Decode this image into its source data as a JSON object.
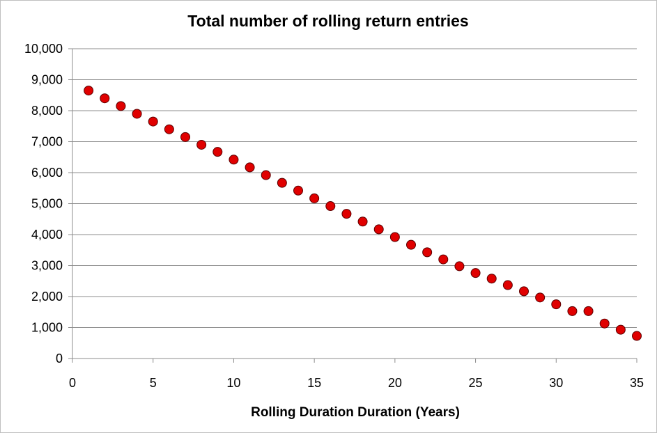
{
  "chart_data": {
    "type": "scatter",
    "title": "Total number of rolling return entries",
    "xlabel": "Rolling Duration Duration (Years)",
    "ylabel": "",
    "xlim": [
      0,
      35
    ],
    "ylim": [
      0,
      10000
    ],
    "x_ticks": [
      0,
      5,
      10,
      15,
      20,
      25,
      30,
      35
    ],
    "x_tick_labels": [
      "0",
      "5",
      "10",
      "15",
      "20",
      "25",
      "30",
      "35"
    ],
    "y_ticks": [
      0,
      1000,
      2000,
      3000,
      4000,
      5000,
      6000,
      7000,
      8000,
      9000,
      10000
    ],
    "y_tick_labels": [
      "0",
      "1,000",
      "2,000",
      "3,000",
      "4,000",
      "5,000",
      "6,000",
      "7,000",
      "8,000",
      "9,000",
      "10,000"
    ],
    "grid": true,
    "legend": "none",
    "marker_color": "#e00000",
    "marker_edge_color": "#5a0000",
    "series": [
      {
        "x": [
          1,
          2,
          3,
          4,
          5,
          6,
          7,
          8,
          9,
          10,
          11,
          12,
          13,
          14,
          15,
          16,
          17,
          18,
          19,
          20,
          21,
          22,
          23,
          24,
          25,
          26,
          27,
          28,
          29,
          30,
          31,
          32,
          33,
          34,
          35
        ],
        "y": [
          8650,
          8400,
          8150,
          7900,
          7650,
          7400,
          7150,
          6900,
          6670,
          6420,
          6170,
          5920,
          5670,
          5420,
          5170,
          4920,
          4670,
          4420,
          4170,
          3920,
          3670,
          3430,
          3200,
          2980,
          2760,
          2580,
          2370,
          2170,
          1970,
          1750,
          1530,
          1530,
          1130,
          930,
          730
        ]
      }
    ]
  }
}
